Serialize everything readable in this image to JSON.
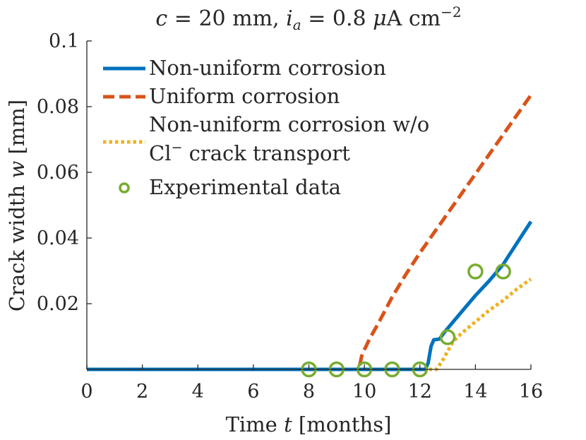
{
  "chart_data": {
    "type": "line",
    "title": {
      "prefix": "c",
      "part1": " = 20 mm, ",
      "ia_symbol": "i",
      "ia_sub": "a",
      "part2": " = 0.8 ",
      "mu": "μ",
      "part3": "A cm",
      "sup": "−2"
    },
    "xlabel": {
      "pre": "Time ",
      "var": "t",
      "post": " [months]"
    },
    "ylabel": {
      "pre": "Crack width ",
      "var": "w",
      "post": " [mm]"
    },
    "xlim": [
      0,
      16
    ],
    "ylim": [
      0,
      0.1
    ],
    "xticks": [
      {
        "v": 0,
        "label": "0"
      },
      {
        "v": 2,
        "label": "2"
      },
      {
        "v": 4,
        "label": "4"
      },
      {
        "v": 6,
        "label": "6"
      },
      {
        "v": 8,
        "label": "8"
      },
      {
        "v": 10,
        "label": "10"
      },
      {
        "v": 12,
        "label": "12"
      },
      {
        "v": 14,
        "label": "14"
      },
      {
        "v": 16,
        "label": "16"
      }
    ],
    "yticks": [
      {
        "v": 0.02,
        "label": "0.02"
      },
      {
        "v": 0.04,
        "label": "0.04"
      },
      {
        "v": 0.06,
        "label": "0.06"
      },
      {
        "v": 0.08,
        "label": "0.08"
      },
      {
        "v": 0.1,
        "label": "0.1"
      }
    ],
    "legend_position": "top-left",
    "series": [
      {
        "name": "Non-uniform corrosion",
        "color": "#0072BD",
        "style": "solid",
        "x": [
          0,
          12.2,
          12.3,
          12.4,
          12.5,
          12.7,
          12.9,
          13.0,
          13.2,
          13.5,
          14.0,
          14.5,
          15.0,
          15.5,
          16.0
        ],
        "y": [
          0,
          0,
          0.002,
          0.007,
          0.009,
          0.0092,
          0.0115,
          0.0125,
          0.0145,
          0.0175,
          0.0225,
          0.027,
          0.032,
          0.0385,
          0.045
        ]
      },
      {
        "name": "Uniform corrosion",
        "color": "#D95319",
        "style": "dashed",
        "x": [
          0,
          9.8,
          9.9,
          10.0,
          10.2,
          10.5,
          11.0,
          11.5,
          12.0,
          12.5,
          13.0,
          14.0,
          15.0,
          16.0
        ],
        "y": [
          0,
          0,
          0.004,
          0.006,
          0.0095,
          0.014,
          0.022,
          0.029,
          0.0355,
          0.0415,
          0.0475,
          0.0595,
          0.0715,
          0.0835
        ]
      },
      {
        "name": "Non-uniform corrosion w/o Cl⁻ crack transport",
        "legend_line1": "Non-uniform corrosion w/o",
        "legend_line2_base": "Cl",
        "legend_line2_sup": "−",
        "legend_line2_rest": " crack transport",
        "color": "#EDB120",
        "style": "dotted",
        "x": [
          0,
          12.6,
          12.8,
          13.0,
          13.2,
          13.5,
          14.0,
          14.5,
          15.0,
          15.5,
          16.0
        ],
        "y": [
          0,
          0,
          0.0025,
          0.0055,
          0.0085,
          0.011,
          0.0145,
          0.018,
          0.021,
          0.0245,
          0.0275
        ]
      },
      {
        "name": "Experimental data",
        "color": "#77AC30",
        "style": "markers",
        "x": [
          8,
          9,
          10,
          11,
          12,
          13,
          14,
          15
        ],
        "y": [
          0,
          0,
          0,
          0,
          0,
          0.0098,
          0.0298,
          0.0298
        ]
      }
    ]
  }
}
